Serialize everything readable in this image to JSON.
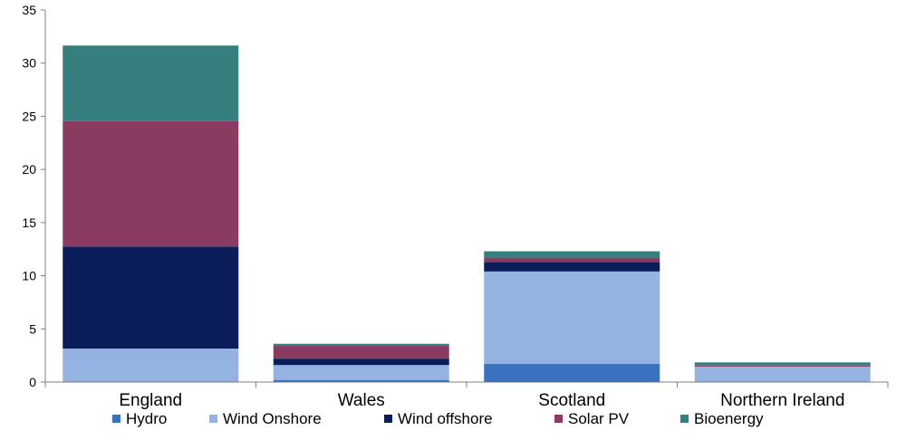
{
  "chart_data": {
    "type": "bar",
    "stacked": true,
    "categories": [
      "England",
      "Wales",
      "Scotland",
      "Northern Ireland"
    ],
    "ylim": [
      0,
      35
    ],
    "yticks": [
      0,
      5,
      10,
      15,
      20,
      25,
      30,
      35
    ],
    "grid": false,
    "legend": "bottom",
    "series": [
      {
        "name": "Hydro",
        "color": "#3a72c0",
        "values": [
          0.05,
          0.2,
          1.7,
          0.05
        ]
      },
      {
        "name": "Wind Onshore",
        "color": "#95b3e0",
        "values": [
          3.1,
          1.4,
          8.7,
          1.4
        ]
      },
      {
        "name": "Wind offshore",
        "color": "#0c1e5a",
        "values": [
          9.6,
          0.6,
          0.9,
          0.0
        ]
      },
      {
        "name": "Solar PV",
        "color": "#8b3a62",
        "values": [
          11.8,
          1.2,
          0.4,
          0.1
        ]
      },
      {
        "name": "Bioenergy",
        "color": "#357f7f",
        "values": [
          7.1,
          0.2,
          0.6,
          0.3
        ]
      }
    ]
  }
}
